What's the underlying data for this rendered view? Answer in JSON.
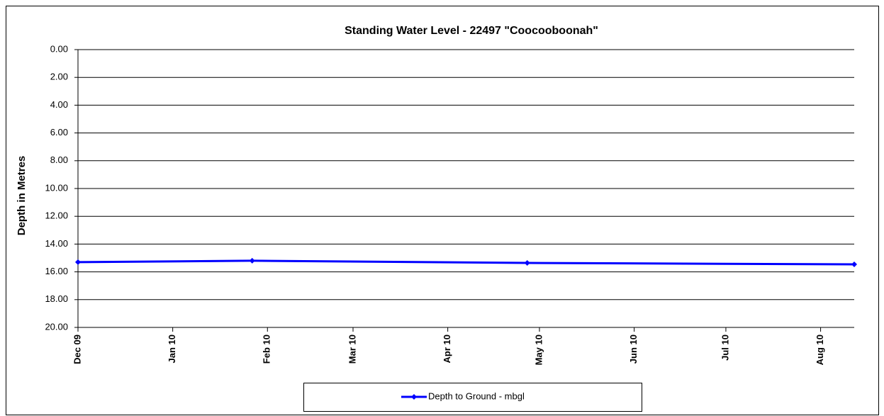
{
  "chart_data": {
    "type": "line",
    "title": "Standing Water Level - 22497 \"Coocooboonah\"",
    "y_label": "Depth in Metres",
    "x": [
      "2009-12-01",
      "2010-01-27",
      "2010-04-27",
      "2010-08-12"
    ],
    "series": [
      {
        "name": "Depth to Ground - mbgl",
        "color": "#0000ff",
        "values": [
          15.3,
          15.2,
          15.36,
          15.46
        ]
      }
    ],
    "xlim": [
      "2009-12-01",
      "2010-08-12"
    ],
    "xticks": [
      {
        "value": "2009-12-01",
        "label": "Dec 09"
      },
      {
        "value": "2010-01-01",
        "label": "Jan 10"
      },
      {
        "value": "2010-02-01",
        "label": "Feb 10"
      },
      {
        "value": "2010-03-01",
        "label": "Mar 10"
      },
      {
        "value": "2010-04-01",
        "label": "Apr 10"
      },
      {
        "value": "2010-05-01",
        "label": "May 10"
      },
      {
        "value": "2010-06-01",
        "label": "Jun 10"
      },
      {
        "value": "2010-07-01",
        "label": "Jul 10"
      },
      {
        "value": "2010-08-01",
        "label": "Aug 10"
      }
    ],
    "ylim": [
      0,
      20
    ],
    "y_inverted": true,
    "yticks": [
      {
        "value": 0,
        "label": "0.00"
      },
      {
        "value": 2,
        "label": "2.00"
      },
      {
        "value": 4,
        "label": "4.00"
      },
      {
        "value": 6,
        "label": "6.00"
      },
      {
        "value": 8,
        "label": "8.00"
      },
      {
        "value": 10,
        "label": "10.00"
      },
      {
        "value": 12,
        "label": "12.00"
      },
      {
        "value": 14,
        "label": "14.00"
      },
      {
        "value": 16,
        "label": "16.00"
      },
      {
        "value": 18,
        "label": "18.00"
      },
      {
        "value": 20,
        "label": "20.00"
      }
    ],
    "grid": true,
    "legend": "bottom"
  }
}
